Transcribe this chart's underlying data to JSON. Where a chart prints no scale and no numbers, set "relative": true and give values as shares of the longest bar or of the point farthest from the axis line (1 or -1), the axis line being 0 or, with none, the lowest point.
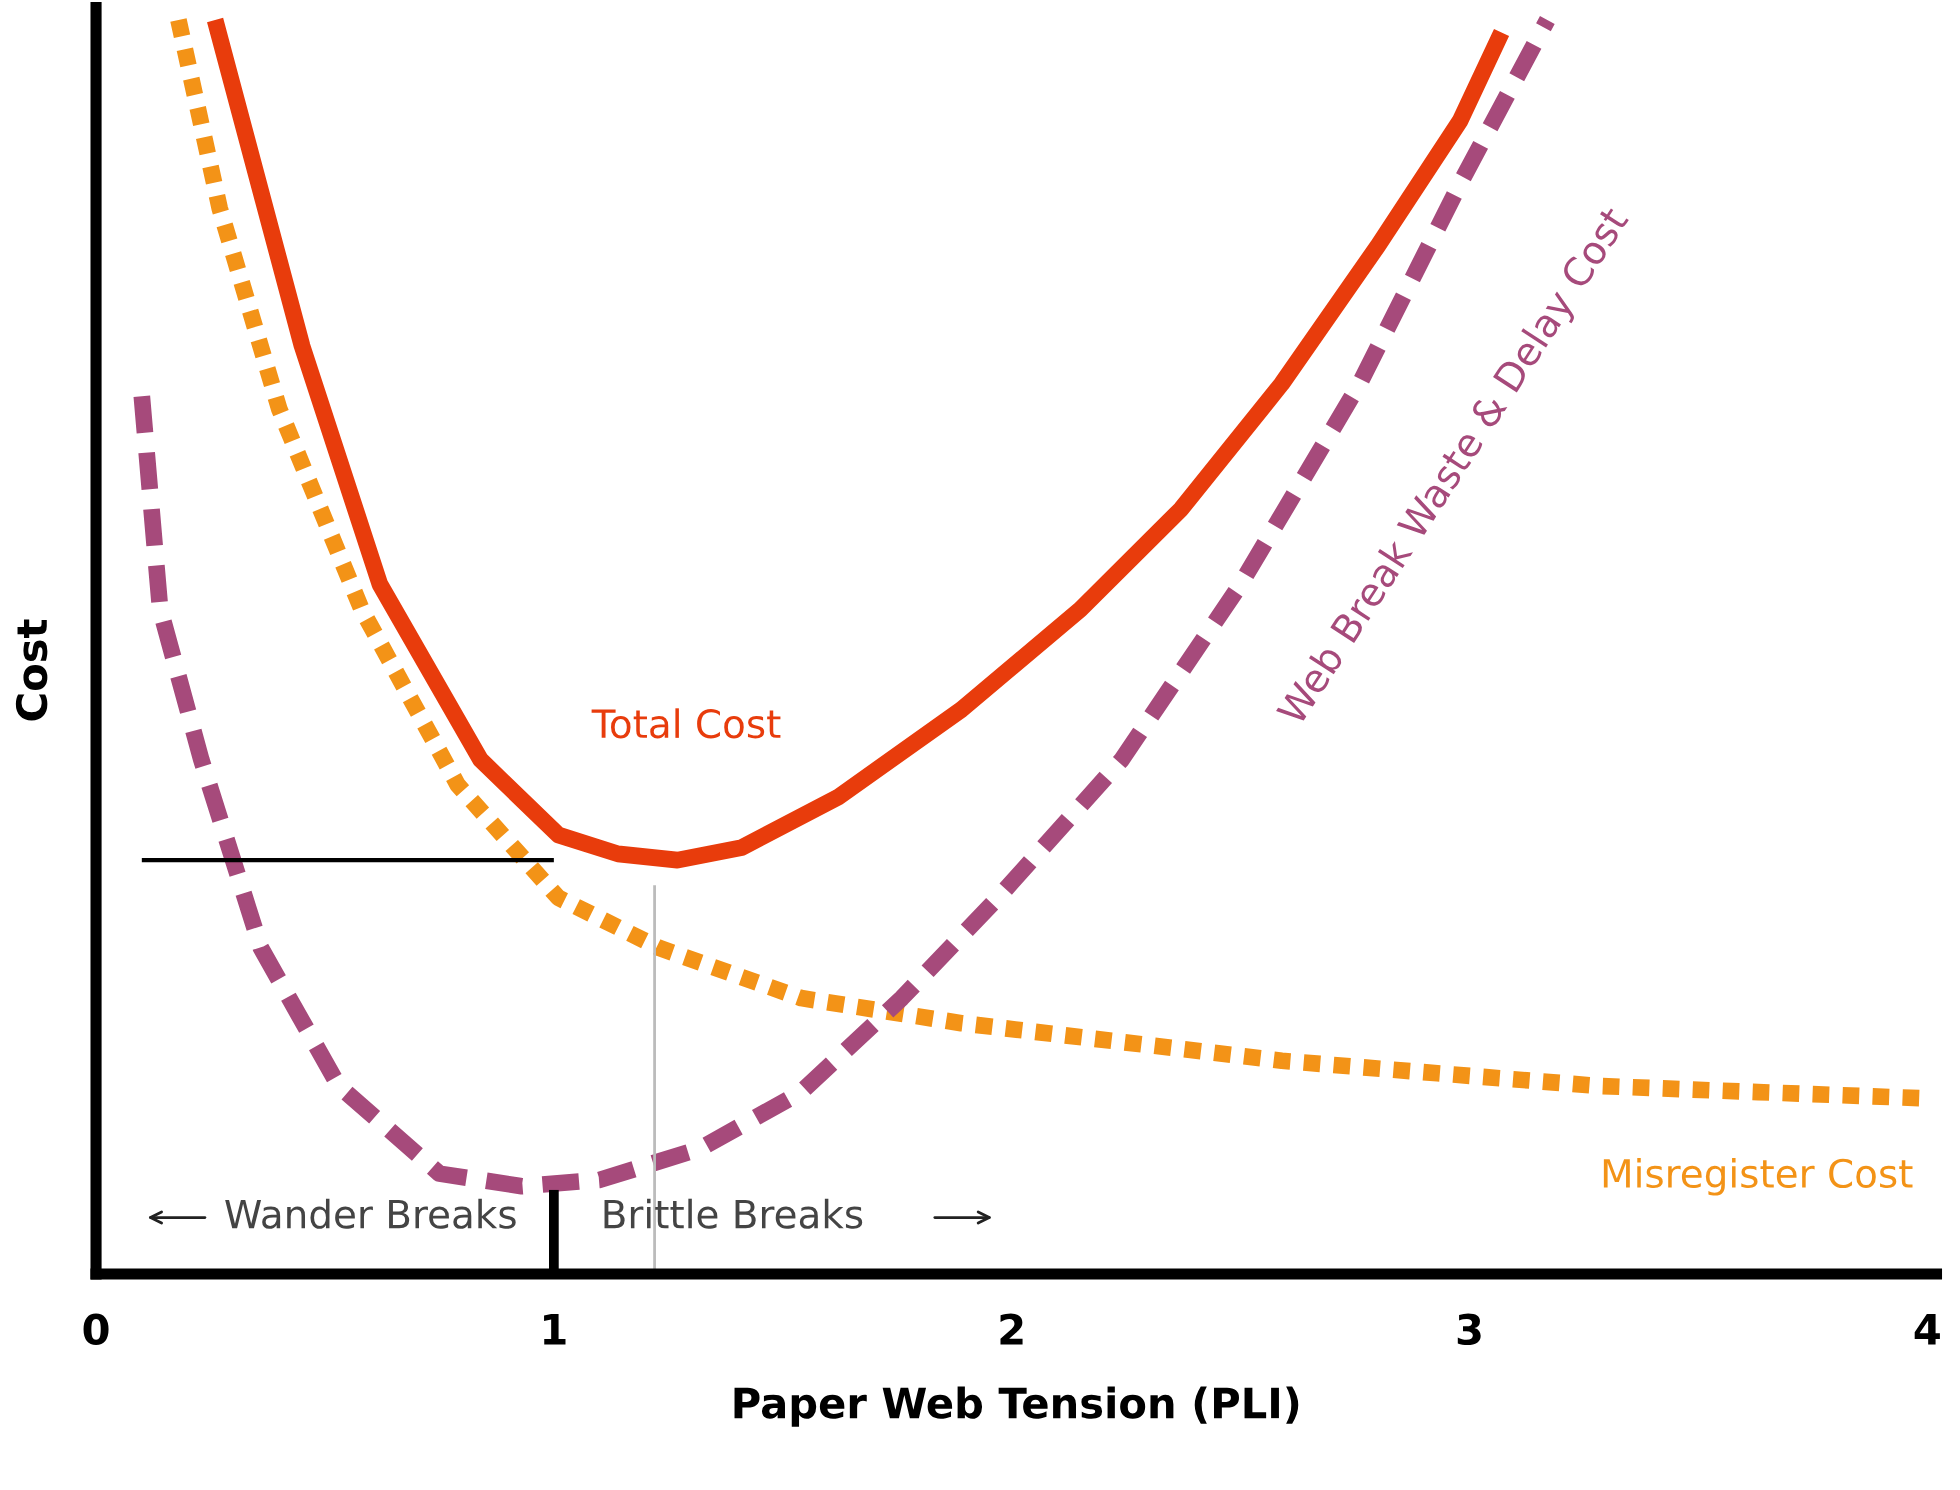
{
  "chart_data": {
    "type": "line",
    "relative": true,
    "xlabel": "Paper Web Tension (PLI)",
    "ylabel": "Cost",
    "xlim": [
      0,
      4.02
    ],
    "xticks": [
      0,
      1,
      2,
      3,
      4
    ],
    "grid": false,
    "legend": false,
    "annotations": [
      "Wander Breaks",
      "Brittle Breaks"
    ],
    "series": [
      {
        "name": "Total Cost",
        "color": "#e83c0c",
        "line_style": "solid",
        "x": [
          0.26,
          0.45,
          0.62,
          0.84,
          1.01,
          1.14,
          1.27,
          1.41,
          1.62,
          1.89,
          2.15,
          2.37,
          2.59,
          2.8,
          2.98,
          3.07
        ],
        "values": [
          1,
          0.74,
          0.55,
          0.41,
          0.35,
          0.335,
          0.33,
          0.34,
          0.38,
          0.45,
          0.53,
          0.61,
          0.71,
          0.82,
          0.92,
          0.99
        ]
      },
      {
        "name": "Misregister Cost",
        "color": "#f39317",
        "line_style": "dotted",
        "x": [
          0.18,
          0.27,
          0.4,
          0.58,
          0.79,
          1.01,
          1.23,
          1.54,
          1.89,
          2.24,
          2.59,
          2.93,
          3.28,
          3.63,
          4.0
        ],
        "values": [
          1,
          0.85,
          0.69,
          0.53,
          0.39,
          0.3,
          0.26,
          0.22,
          0.2,
          0.185,
          0.17,
          0.16,
          0.15,
          0.145,
          0.14
        ]
      },
      {
        "name": "Web Break Waste & Delay Cost",
        "color": "#a64a7b",
        "line_style": "dashed",
        "x": [
          0.1,
          0.14,
          0.23,
          0.36,
          0.53,
          0.75,
          0.93,
          1.1,
          1.32,
          1.54,
          1.76,
          1.97,
          2.24,
          2.5,
          2.76,
          2.98,
          3.17
        ],
        "values": [
          0.7,
          0.53,
          0.41,
          0.26,
          0.15,
          0.08,
          0.07,
          0.075,
          0.1,
          0.145,
          0.22,
          0.3,
          0.41,
          0.55,
          0.71,
          0.87,
          1
        ]
      },
      {
        "color": "#000000",
        "line_style": "solid",
        "x": [
          0.1,
          1.0
        ],
        "values": [
          0.33,
          0.33
        ]
      },
      {
        "color": "#000000",
        "line_style": "solid",
        "x": [
          1.0,
          1.0
        ],
        "values": [
          0,
          0.067
        ]
      },
      {
        "color": "#bbbbbb",
        "line_style": "solid",
        "x": [
          1.22,
          1.22
        ],
        "values": [
          0,
          0.31
        ]
      }
    ]
  }
}
